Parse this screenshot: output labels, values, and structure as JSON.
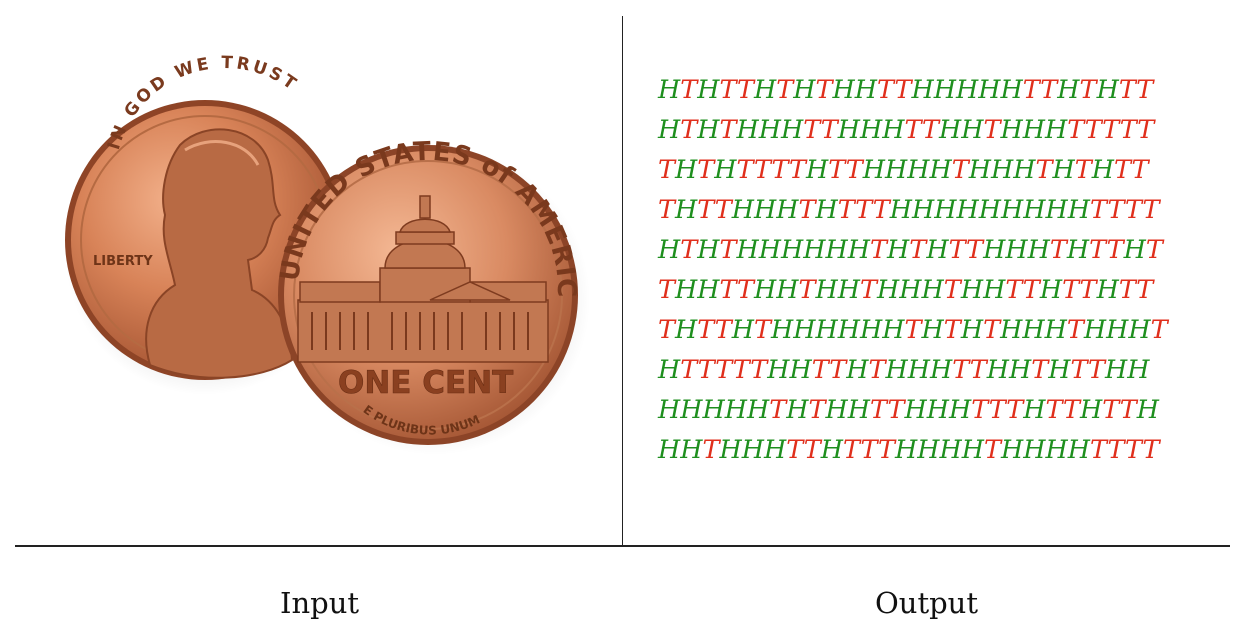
{
  "captions": {
    "input": "Input",
    "output": "Output"
  },
  "coin_image": {
    "front_motto": "IN GOD WE TRUST",
    "front_word": "LIBERTY",
    "back_top": "UNITED STATES of AMERICA",
    "back_denomination": "ONE CENT",
    "back_bottom": "E PLURIBUS UNUM"
  },
  "colors": {
    "heads": "#1e8f1e",
    "tails": "#e02f1c",
    "copper": "#c9744a"
  },
  "sequences": [
    "HTHTTHTHTHHTTHHHHHTTHTHTT",
    "HTHTHHHTTHHHTTHHTHHHTTTTT",
    "THTHTTTTHTTHHHHTHHHTHTHTT",
    "THTTHHHTHTTTHHHHHHHHHTTTT",
    "HTHTHHHHHHTHTHTTHHHTHTTHT",
    "THHTTHHTHHTHHHTHHTTHTTHTT",
    "THTTHTHHHHHHTHTHTHHHTHHHT",
    "HTTTTTHHTTHTHHHTTHHTHTTHH",
    "HHHHHTHTHHTTHHHTTTHTTHTTH",
    "HHTHHHTTHTTTHHHHTHHHHTTTT"
  ]
}
